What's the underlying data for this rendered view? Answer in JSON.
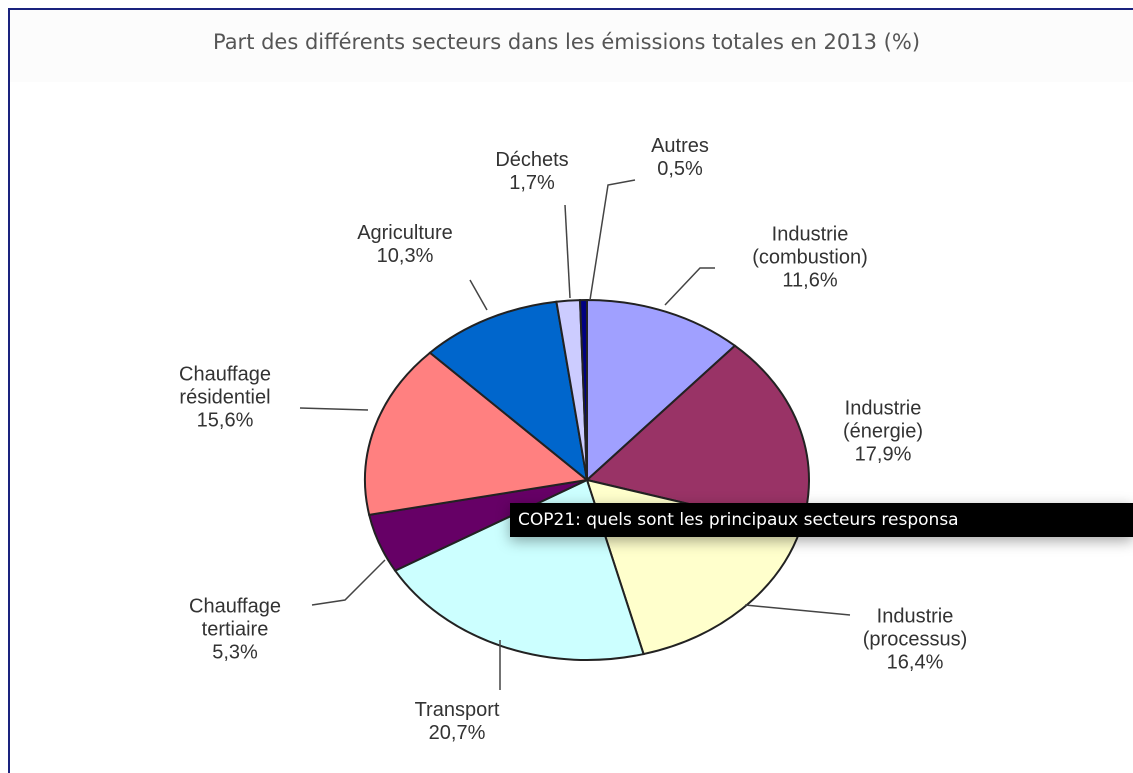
{
  "chart_data": {
    "type": "pie",
    "title": "Part des différents secteurs dans les émissions totales en 2013 (%)",
    "categories": [
      "Industrie (combustion)",
      "Industrie (énergie)",
      "Industrie (processus)",
      "Transport",
      "Chauffage tertiaire",
      "Chauffage résidentiel",
      "Agriculture",
      "Déchets",
      "Autres"
    ],
    "values": [
      11.6,
      17.9,
      16.4,
      20.7,
      5.3,
      15.6,
      10.3,
      1.7,
      0.5
    ],
    "value_labels": [
      "11,6%",
      "17,9%",
      "16,4%",
      "20,7%",
      "5,3%",
      "15,6%",
      "10,3%",
      "1,7%",
      "0,5%"
    ],
    "colors": [
      "#a0a0ff",
      "#993366",
      "#ffffcc",
      "#ccffff",
      "#660066",
      "#ff8080",
      "#0066cc",
      "#ccccff",
      "#000080"
    ]
  },
  "tooltip": "COP21: quels sont les principaux secteurs responsa"
}
